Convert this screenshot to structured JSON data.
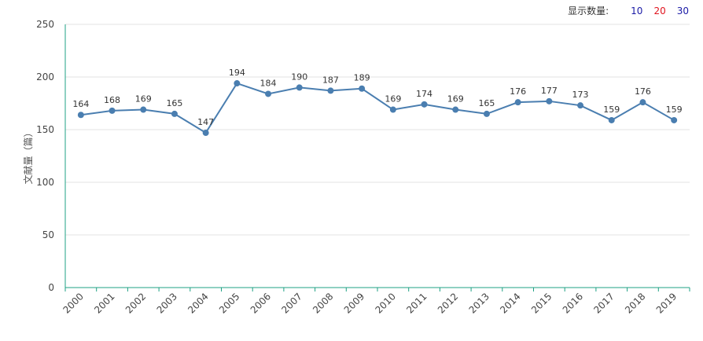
{
  "toolbar": {
    "label": "显示数量:",
    "options": [
      "10",
      "20",
      "30"
    ]
  },
  "colors": {
    "line": "#4a7eb0",
    "axis": "#1fa184",
    "grid": "#e3e3e3"
  },
  "chart_data": {
    "type": "line",
    "categories": [
      "2000",
      "2001",
      "2002",
      "2003",
      "2004",
      "2005",
      "2006",
      "2007",
      "2008",
      "2009",
      "2010",
      "2011",
      "2012",
      "2013",
      "2014",
      "2015",
      "2016",
      "2017",
      "2018",
      "2019"
    ],
    "values": [
      164,
      168,
      169,
      165,
      147,
      194,
      184,
      190,
      187,
      189,
      169,
      174,
      169,
      165,
      176,
      177,
      173,
      159,
      176,
      159
    ],
    "ylabel": "文献量（篇）",
    "ylim": [
      0,
      250
    ],
    "yticks": [
      0,
      50,
      100,
      150,
      200,
      250
    ],
    "grid": true,
    "data_labels": true
  }
}
